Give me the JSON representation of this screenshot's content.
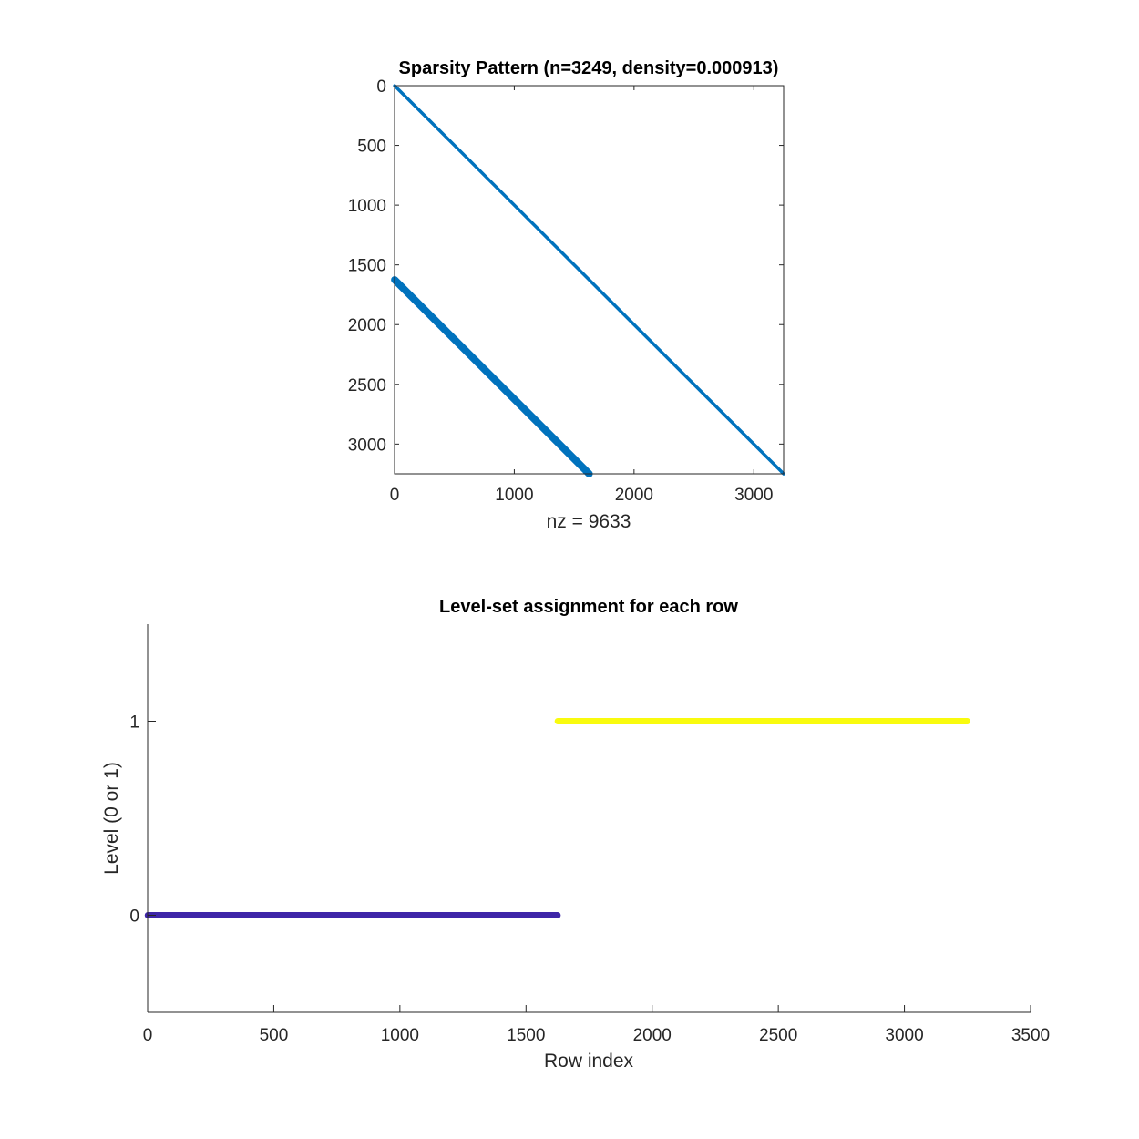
{
  "chart_data": [
    {
      "type": "scatter",
      "title": "Sparsity Pattern (n=3249, density=0.000913)",
      "xlabel": "nz = 9633",
      "ylabel": "",
      "xlim": [
        0,
        3249
      ],
      "ylim": [
        0,
        3249
      ],
      "y_reversed": true,
      "xticks": [
        0,
        1000,
        2000,
        3000
      ],
      "yticks": [
        0,
        500,
        1000,
        1500,
        2000,
        2500,
        3000
      ],
      "grid": false,
      "marker_color": "#0072BD",
      "series": [
        {
          "kind": "main-diagonal",
          "x": [
            1,
            3249
          ],
          "y": [
            1,
            3249
          ]
        },
        {
          "kind": "sub-diagonal-band",
          "x": [
            1,
            1625
          ],
          "y": [
            1625,
            3249
          ]
        }
      ]
    },
    {
      "type": "scatter",
      "title": "Level-set assignment for each row",
      "xlabel": "Row index",
      "ylabel": "Level (0 or 1)",
      "xlim": [
        0,
        3500
      ],
      "ylim": [
        -0.5,
        1.5
      ],
      "xticks": [
        0,
        500,
        1000,
        1500,
        2000,
        2500,
        3000,
        3500
      ],
      "yticks": [
        0,
        1
      ],
      "grid": false,
      "series": [
        {
          "kind": "level-0",
          "x": [
            1,
            1625
          ],
          "y": [
            0,
            0
          ],
          "color": "#3E26A8"
        },
        {
          "kind": "level-1",
          "x": [
            1626,
            3249
          ],
          "y": [
            1,
            1
          ],
          "color": "#F9FB0E"
        }
      ]
    }
  ]
}
